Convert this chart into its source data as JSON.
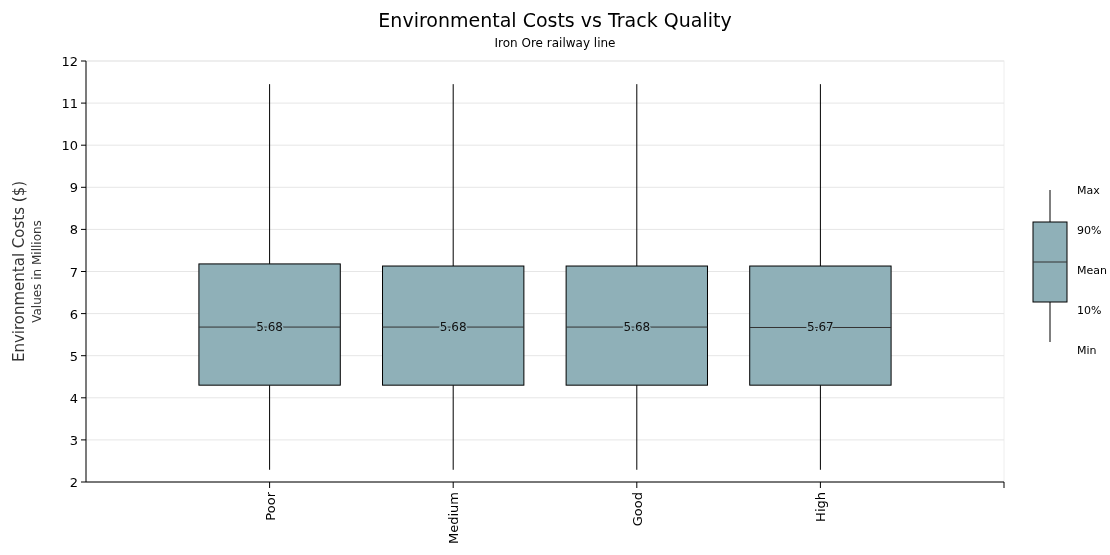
{
  "chart_data": {
    "type": "box",
    "title": "Environmental Costs vs Track Quality",
    "subtitle": "Iron Ore railway line",
    "ylabel": "Environmental Costs ($)",
    "y2label": "Values in Millions",
    "categories": [
      "Poor",
      "Medium",
      "Good",
      "High"
    ],
    "series": [
      {
        "color": "#8fb0b8",
        "boxes": [
          {
            "low": 2.29,
            "q1": 4.3,
            "median": 5.68,
            "q3": 7.18,
            "high": 11.45
          },
          {
            "low": 2.29,
            "q1": 4.3,
            "median": 5.68,
            "q3": 7.13,
            "high": 11.45
          },
          {
            "low": 2.29,
            "q1": 4.3,
            "median": 5.68,
            "q3": 7.13,
            "high": 11.45
          },
          {
            "low": 2.29,
            "q1": 4.3,
            "median": 5.67,
            "q3": 7.13,
            "high": 11.45
          }
        ],
        "value_labels": [
          "5.68",
          "5.68",
          "5.68",
          "5.67"
        ]
      }
    ],
    "ylim": [
      2,
      12
    ],
    "yticks": [
      2,
      3,
      4,
      5,
      6,
      7,
      8,
      9,
      10,
      11,
      12
    ],
    "grid": "y",
    "annotations": [
      "Max",
      "90%",
      "Mean",
      "10%",
      "Min"
    ]
  }
}
